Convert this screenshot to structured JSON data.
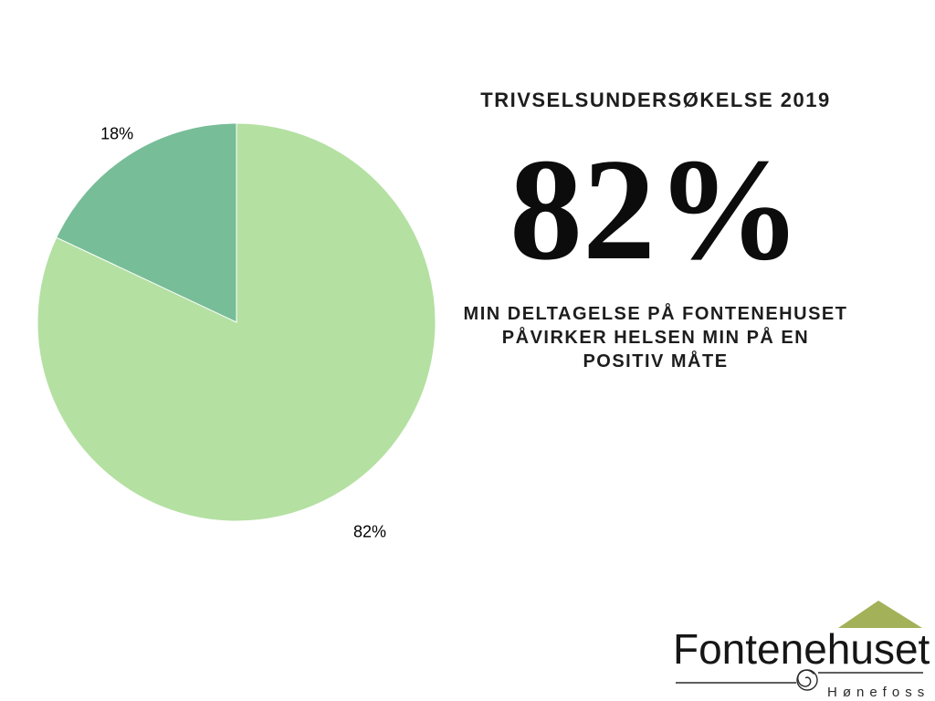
{
  "page": {
    "background": "#ffffff"
  },
  "chart_data": {
    "type": "pie",
    "title": "TRIVSELSUNDERSØKELSE 2019",
    "labels": [
      "82%",
      "18%"
    ],
    "values": [
      82,
      18
    ],
    "colors": [
      "#b4e0a2",
      "#77bd98"
    ],
    "start_angle_deg": 0,
    "direction": "clockwise",
    "slice_border_color": "#ffffff",
    "label_color": "#000000",
    "label_radius_factor": [
      1.25,
      1.12
    ],
    "legend": "none"
  },
  "right_panel": {
    "title": "TRIVSELSUNDERSØKELSE 2019",
    "big_stat": "82%",
    "description_lines": [
      "MIN DELTAGELSE PÅ FONTENEHUSET",
      "PÅVIRKER HELSEN MIN PÅ EN",
      "POSITIV MÅTE"
    ]
  },
  "logo": {
    "name": "Fontenehuset",
    "location": "Hønefoss",
    "roof_color": "#a3b158",
    "text_color": "#161616",
    "rule_color": "#2a2a2a"
  }
}
